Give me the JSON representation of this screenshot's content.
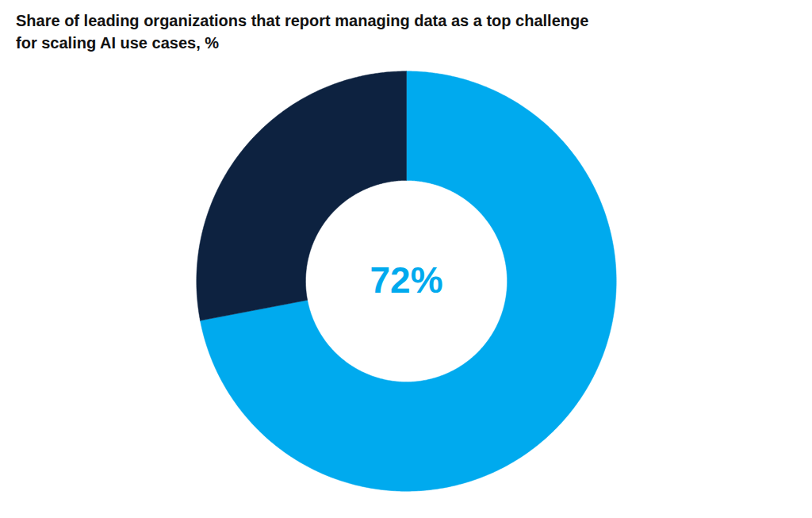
{
  "chart_data": {
    "type": "donut",
    "title": "Share of leading organizations that report managing data as a top challenge\nfor scaling AI use cases, %",
    "values": [
      72,
      28
    ],
    "colors": [
      "#00AAEE",
      "#0d2240"
    ],
    "annotations": [
      "72%"
    ]
  }
}
